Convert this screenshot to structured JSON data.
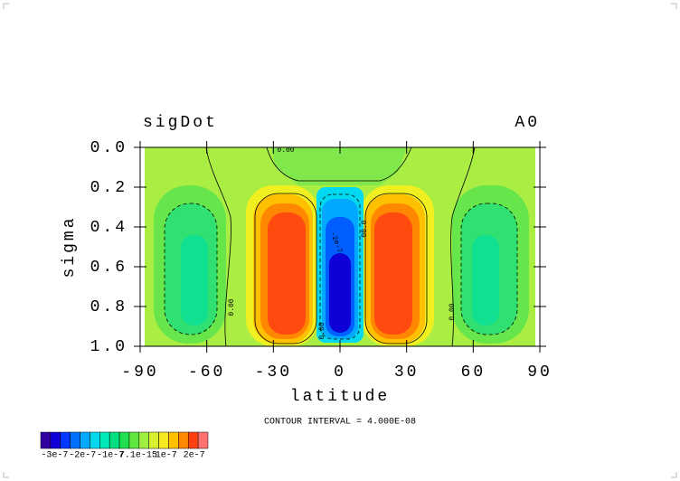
{
  "chart_data": {
    "type": "contour",
    "title": "sigDot",
    "title_right": "A0",
    "x_label": "latitude",
    "y_label": "sigma",
    "xlim": [
      -90,
      90
    ],
    "xticks": [
      -90,
      -60,
      -30,
      0,
      30,
      60,
      90
    ],
    "ylim": [
      0,
      1
    ],
    "y_inverted": true,
    "yticks": [
      {
        "value": 0,
        "label": "0.0"
      },
      0.2,
      0.4,
      0.6,
      0.8,
      {
        "value": 1,
        "label": "1.0"
      }
    ],
    "contour_info": "CONTOUR INTERVAL = 4.000E-08",
    "contour_labels": [
      "0.00",
      "0.00",
      "0.00",
      "00.0",
      "-2e-7",
      "0.00"
    ],
    "colorbar": {
      "colors": [
        "#3000a0",
        "#1000d8",
        "#0038ff",
        "#0070ff",
        "#00a8ff",
        "#00d8f0",
        "#00e8b8",
        "#00e080",
        "#20e050",
        "#60e840",
        "#a0ee40",
        "#d8f030",
        "#f8e820",
        "#ffc000",
        "#ff8800",
        "#ff4010",
        "#ff7070"
      ],
      "labels": [
        "-3e-7",
        "-2e-7",
        "-1e-7",
        "7.1e-15",
        "1e-7",
        "2e-7"
      ]
    }
  }
}
